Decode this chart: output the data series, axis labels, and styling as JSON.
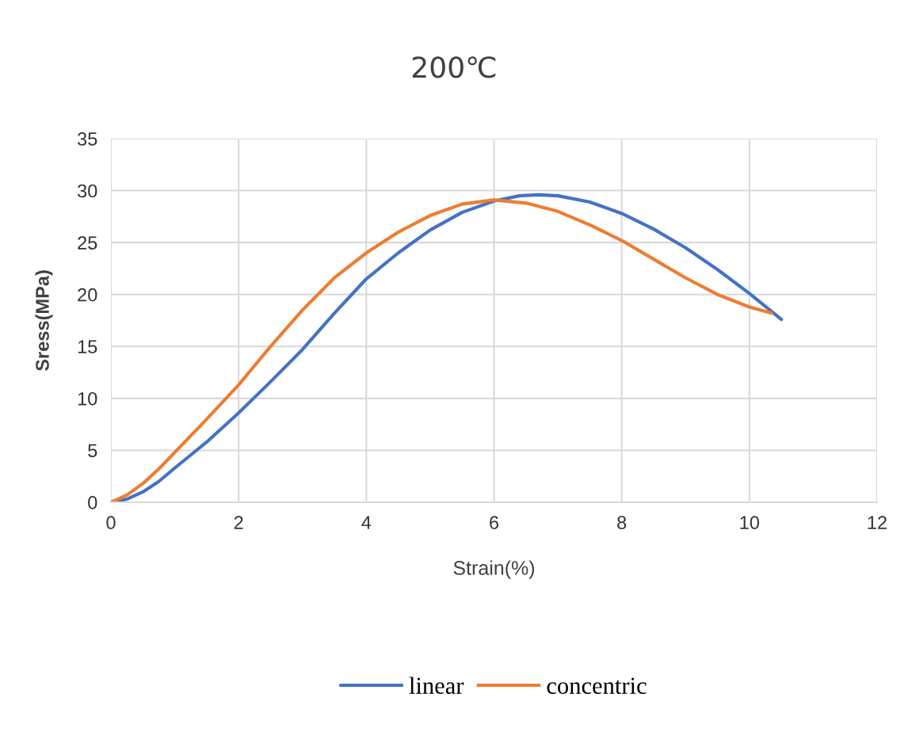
{
  "chart_data": {
    "type": "line",
    "title": "200℃",
    "xlabel": "Strain(%)",
    "ylabel": "Sress(MPa)",
    "xlim": [
      0,
      12
    ],
    "xticks": [
      0,
      2,
      4,
      6,
      8,
      10,
      12
    ],
    "ylim": [
      0,
      35
    ],
    "yticks": [
      0,
      5,
      10,
      15,
      20,
      25,
      30,
      35
    ],
    "grid": true,
    "legend": "bottom",
    "marker": "none",
    "line_style": "solid",
    "series": [
      {
        "name": "linear",
        "color": "#4472c4",
        "x": [
          0,
          0.25,
          0.5,
          0.75,
          1,
          1.5,
          2,
          2.5,
          3,
          3.5,
          4,
          4.5,
          5,
          5.5,
          6,
          6.4,
          6.7,
          7,
          7.5,
          8,
          8.5,
          9,
          9.5,
          10,
          10.5
        ],
        "values": [
          0,
          0.3,
          1.0,
          2.0,
          3.3,
          5.8,
          8.6,
          11.6,
          14.7,
          18.2,
          21.5,
          24.0,
          26.2,
          27.9,
          29.0,
          29.5,
          29.6,
          29.5,
          28.9,
          27.8,
          26.3,
          24.5,
          22.4,
          20.1,
          17.6
        ]
      },
      {
        "name": "concentric",
        "color": "#ed7d31",
        "x": [
          0,
          0.25,
          0.5,
          0.75,
          1,
          1.5,
          2,
          2.5,
          3,
          3.5,
          4,
          4.5,
          5,
          5.5,
          6,
          6.5,
          7,
          7.5,
          8,
          8.5,
          9,
          9.5,
          10,
          10.35
        ],
        "values": [
          0,
          0.7,
          1.8,
          3.2,
          4.8,
          8.0,
          11.3,
          15.0,
          18.5,
          21.6,
          24.0,
          26.0,
          27.6,
          28.7,
          29.1,
          28.8,
          28.0,
          26.7,
          25.2,
          23.4,
          21.6,
          20.0,
          18.8,
          18.2
        ]
      }
    ]
  }
}
